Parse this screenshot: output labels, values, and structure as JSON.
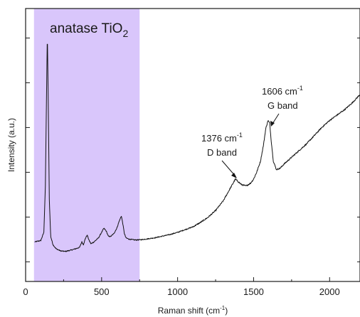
{
  "chart_data": {
    "type": "line",
    "title": "",
    "xlabel": "Raman shift (cm",
    "xlabel_sup": "-1",
    "xlabel_end": ")",
    "ylabel": "Intensity (a.u.)",
    "xlim": [
      0,
      2200
    ],
    "ylim": [
      0,
      100
    ],
    "y_tick_labels_shown": false,
    "grid": false,
    "x_ticks": [
      0,
      500,
      1000,
      1500,
      2000
    ],
    "x_tick_labels": [
      "0",
      "500",
      "1000",
      "1500",
      "2000"
    ],
    "y_ticks": [
      7.2,
      23.6,
      40.0,
      56.4,
      72.8,
      89.2
    ],
    "shaded_region": {
      "x": [
        55,
        750
      ],
      "color": "#d9c6fb",
      "label": "anatase TiO",
      "label_sub": "2"
    },
    "line_color": "#111111",
    "series": [
      {
        "x": [
          60,
          100,
          120,
          130,
          138,
          143,
          148,
          156,
          165,
          180,
          200,
          230,
          260,
          300,
          330,
          355,
          370,
          380,
          395,
          405,
          418,
          430,
          450,
          480,
          500,
          515,
          530,
          545,
          560,
          580,
          600,
          615,
          630,
          640,
          650,
          660,
          680,
          720,
          760,
          800,
          850,
          900,
          950,
          1000,
          1050,
          1100,
          1150,
          1200,
          1250,
          1300,
          1340,
          1370,
          1380,
          1400,
          1420,
          1450,
          1480,
          1500,
          1520,
          1545,
          1565,
          1580,
          1595,
          1606,
          1615,
          1630,
          1650,
          1675,
          1700,
          1750,
          1800,
          1850,
          1900,
          1950,
          2000,
          2050,
          2100,
          2150,
          2200
        ],
        "y": [
          14.5,
          15.0,
          18.0,
          35.0,
          70.0,
          91.0,
          70.0,
          30.0,
          16.5,
          13.5,
          12.0,
          11.2,
          11.0,
          11.5,
          12.0,
          12.5,
          14.5,
          13.5,
          16.0,
          17.0,
          15.0,
          13.8,
          14.5,
          16.0,
          18.0,
          19.5,
          18.5,
          16.5,
          16.5,
          17.5,
          19.5,
          22.0,
          24.0,
          21.0,
          17.5,
          16.0,
          15.5,
          15.2,
          15.3,
          15.6,
          16.0,
          16.6,
          17.2,
          18.0,
          19.0,
          20.0,
          21.6,
          23.5,
          26.0,
          29.5,
          33.5,
          36.5,
          37.5,
          36.5,
          35.5,
          35.0,
          36.0,
          37.5,
          40.0,
          44.0,
          50.0,
          56.0,
          59.0,
          58.0,
          52.0,
          44.0,
          41.0,
          41.5,
          43.0,
          45.5,
          48.0,
          50.5,
          53.5,
          56.5,
          59.0,
          61.0,
          63.0,
          65.5,
          68.5
        ]
      }
    ],
    "annotations": [
      {
        "line1": "1376 cm",
        "sup": "-1",
        "line2": "D band",
        "x": 1376,
        "y": 37.5
      },
      {
        "line1": "1606 cm",
        "sup": "-1",
        "line2": "G band",
        "x": 1606,
        "y": 59.0
      }
    ]
  }
}
